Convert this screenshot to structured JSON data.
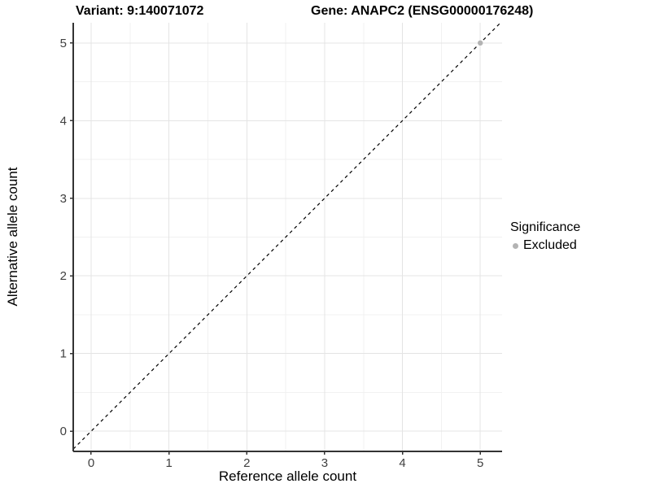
{
  "figure": {
    "title_left": "Variant: 9:140071072",
    "title_right": "Gene: ANAPC2 (ENSG00000176248)"
  },
  "chart_data": {
    "type": "scatter",
    "title": "Variant: 9:140071072   Gene: ANAPC2 (ENSG00000176248)",
    "xlabel": "Reference allele count",
    "ylabel": "Alternative allele count",
    "xlim": [
      -0.23,
      5.28
    ],
    "ylim": [
      -0.26,
      5.26
    ],
    "x_major_ticks": [
      0,
      1,
      2,
      3,
      4,
      5
    ],
    "y_major_ticks": [
      0,
      1,
      2,
      3,
      4,
      5
    ],
    "x_minor_ticks": [
      0.5,
      1.5,
      2.5,
      3.5,
      4.5
    ],
    "y_minor_ticks": [
      0.5,
      1.5,
      2.5,
      3.5,
      4.5
    ],
    "grid": "on",
    "reference_line": {
      "type": "identity",
      "equation": "y = x",
      "style": "dashed",
      "color": "#000000"
    },
    "series": [
      {
        "name": "Excluded",
        "color": "#b3b3b3",
        "points": [
          {
            "x": 5,
            "y": 5
          }
        ]
      }
    ],
    "legend": {
      "title": "Significance",
      "position": "right",
      "items": [
        {
          "label": "Excluded",
          "color": "#b3b3b3",
          "marker": "circle"
        }
      ]
    },
    "colors": {
      "background": "#ffffff",
      "grid_major": "#e4e4e4",
      "grid_minor": "#f1f1f1",
      "axis_line": "#333333",
      "tick_label": "#404040",
      "point": "#b3b3b3"
    }
  }
}
